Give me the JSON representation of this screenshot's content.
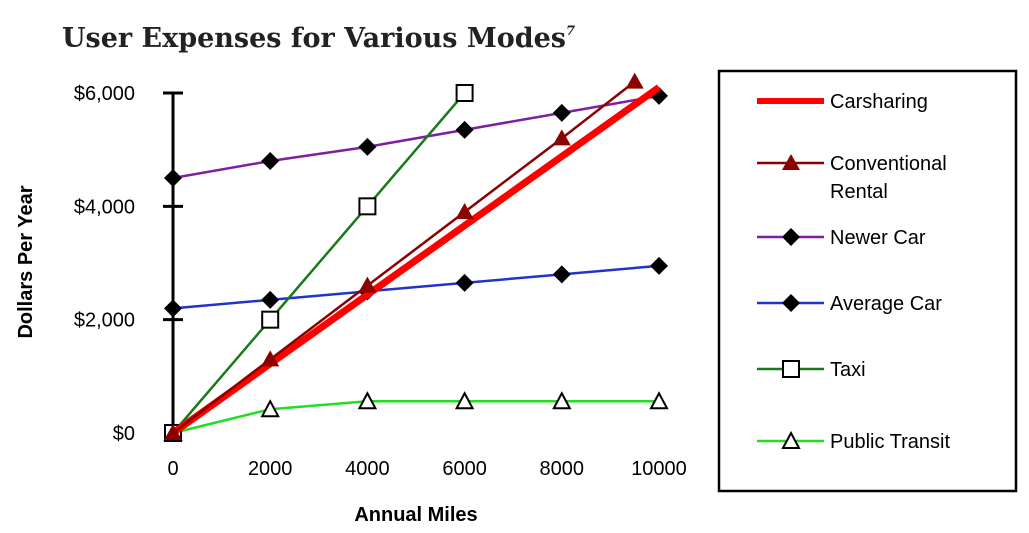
{
  "chart_data": {
    "type": "line",
    "title": "User Expenses for Various Modes",
    "title_superscript": "7",
    "xlabel": "Annual Miles",
    "ylabel": "Dollars Per Year",
    "x_ticks": [
      "0",
      "2000",
      "4000",
      "6000",
      "8000",
      "10000"
    ],
    "y_ticks": [
      "$0",
      "$2,000",
      "$4,000",
      "$6,000"
    ],
    "xlim": [
      0,
      10000
    ],
    "ylim": [
      0,
      6000
    ],
    "grid": false,
    "legend_position": "right",
    "series": [
      {
        "name": "Carsharing",
        "color": "#ff0000",
        "marker": "none",
        "x": [
          0,
          10000
        ],
        "y": [
          0,
          6100
        ]
      },
      {
        "name": "Conventional Rental",
        "color": "#8b0000",
        "marker": "filled-triangle",
        "x": [
          0,
          2000,
          4000,
          6000,
          8000,
          9500
        ],
        "y": [
          0,
          1300,
          2600,
          3900,
          5200,
          6200
        ]
      },
      {
        "name": "Newer Car",
        "color": "#7f1fa0",
        "marker": "filled-diamond",
        "x": [
          0,
          2000,
          4000,
          6000,
          8000,
          10000
        ],
        "y": [
          4500,
          4800,
          5050,
          5350,
          5650,
          5950
        ]
      },
      {
        "name": "Average Car",
        "color": "#2233cc",
        "marker": "filled-diamond",
        "x": [
          0,
          2000,
          4000,
          6000,
          8000,
          10000
        ],
        "y": [
          2200,
          2350,
          2500,
          2650,
          2800,
          2950
        ]
      },
      {
        "name": "Taxi",
        "color": "#1a7a1a",
        "marker": "open-square",
        "x": [
          0,
          2000,
          4000,
          6000
        ],
        "y": [
          0,
          2000,
          4000,
          6000
        ]
      },
      {
        "name": "Public Transit",
        "color": "#22dd22",
        "marker": "open-triangle",
        "x": [
          0,
          2000,
          4000,
          6000,
          8000,
          10000
        ],
        "y": [
          0,
          420,
          560,
          560,
          560,
          560
        ]
      }
    ]
  }
}
